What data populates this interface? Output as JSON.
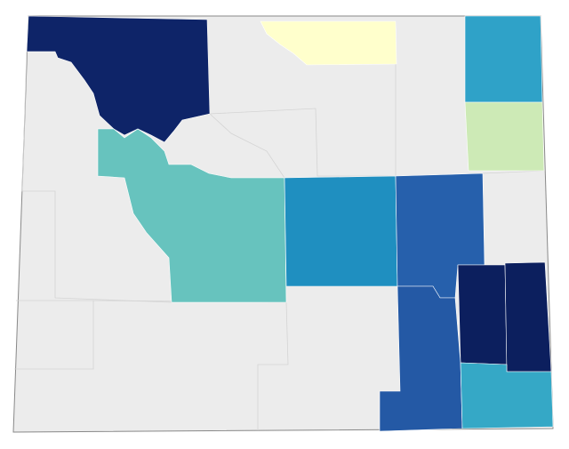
{
  "regions": [
    {
      "color": "#0e2468"
    },
    {
      "color": "#ffffcc"
    },
    {
      "color": "#2fa2c8"
    },
    {
      "color": "#cdeab6"
    },
    {
      "color": "#67c3be"
    },
    {
      "color": "#1f8fc0"
    },
    {
      "color": "#2660ac"
    },
    {
      "color": "#0c1f5e"
    },
    {
      "color": "#0c1f5e"
    },
    {
      "color": "#2459a5"
    },
    {
      "color": "#35a8c6"
    }
  ]
}
